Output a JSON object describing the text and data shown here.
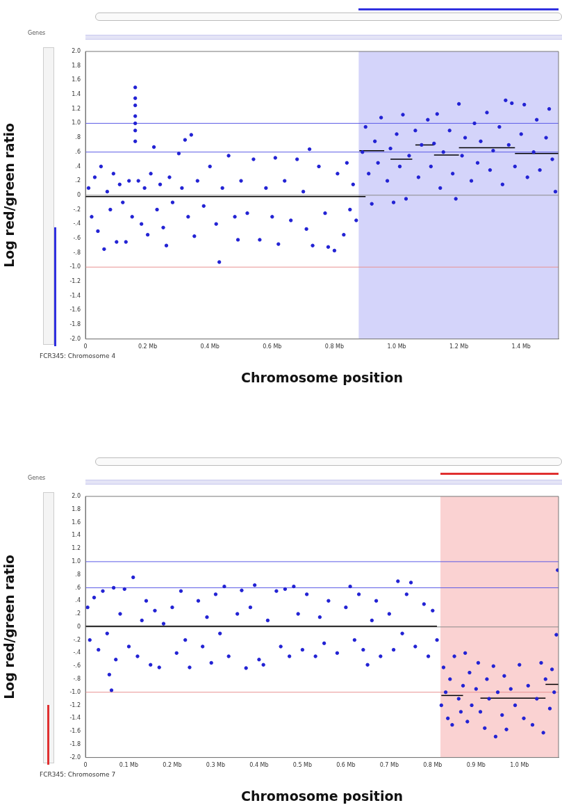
{
  "chart_data": [
    {
      "type": "scatter",
      "xlabel": "Chromosome position",
      "ylabel": "Log red/green ratio",
      "annotations": [
        "FCR345: Chromosome 4",
        "Genes"
      ],
      "grid": false,
      "legend": false,
      "marker": "circle",
      "xlim": [
        0,
        1.52
      ],
      "xticks": [
        0,
        {
          "value": 0.2,
          "label": "0.2 Mb"
        },
        {
          "value": 0.4,
          "label": "0.4 Mb"
        },
        {
          "value": 0.6,
          "label": "0.6 Mb"
        },
        {
          "value": 0.8,
          "label": "0.8 Mb"
        },
        {
          "value": 1.0,
          "label": "1.0 Mb"
        },
        {
          "value": 1.2,
          "label": "1.2 Mb"
        },
        {
          "value": 1.4,
          "label": "1.4 Mb"
        }
      ],
      "ylim": [
        -2,
        2
      ],
      "yticks": [
        {
          "value": 2,
          "label": "2.0"
        },
        1.8,
        1.6,
        1.4,
        1.2,
        {
          "value": 1,
          "label": "1.0"
        },
        {
          "value": 0.8,
          "label": ".8"
        },
        {
          "value": 0.6,
          "label": ".6"
        },
        {
          "value": 0.4,
          "label": ".4"
        },
        {
          "value": 0.2,
          "label": ".2"
        },
        0,
        {
          "value": -0.2,
          "label": "-.2"
        },
        {
          "value": -0.4,
          "label": "-.4"
        },
        {
          "value": -0.6,
          "label": "-.6"
        },
        {
          "value": -0.8,
          "label": "-.8"
        },
        {
          "value": -1,
          "label": "-1.0"
        },
        -1.2,
        -1.4,
        -1.6,
        -1.8,
        {
          "value": -2,
          "label": "-2.0"
        }
      ],
      "bands": [
        {
          "axis": "x",
          "from": 0.878,
          "to": 1.52,
          "color": "#d4d4fa"
        }
      ],
      "ref_lines": [
        {
          "axis": "y",
          "value": 1,
          "color": "#5a5ae6"
        },
        {
          "axis": "y",
          "value": 0.6,
          "color": "#5a5ae6"
        },
        {
          "axis": "y",
          "value": 0,
          "color": "#8a8a8a"
        },
        {
          "axis": "y",
          "value": -1,
          "color": "#e89090"
        }
      ],
      "series": [
        {
          "type": "scatter",
          "color": "#2222d4",
          "x": [
            0.01,
            0.02,
            0.03,
            0.04,
            0.05,
            0.06,
            0.07,
            0.08,
            0.09,
            0.1,
            0.11,
            0.12,
            0.13,
            0.14,
            0.15,
            0.16,
            0.16,
            0.16,
            0.16,
            0.16,
            0.16,
            0.16,
            0.17,
            0.18,
            0.19,
            0.2,
            0.21,
            0.22,
            0.23,
            0.24,
            0.25,
            0.26,
            0.27,
            0.28,
            0.3,
            0.31,
            0.32,
            0.33,
            0.34,
            0.35,
            0.36,
            0.38,
            0.4,
            0.42,
            0.43,
            0.44,
            0.46,
            0.48,
            0.49,
            0.5,
            0.52,
            0.54,
            0.56,
            0.58,
            0.6,
            0.61,
            0.62,
            0.64,
            0.66,
            0.68,
            0.7,
            0.71,
            0.72,
            0.73,
            0.75,
            0.77,
            0.78,
            0.8,
            0.81,
            0.83,
            0.84,
            0.85,
            0.86,
            0.87,
            0.89,
            0.9,
            0.91,
            0.92,
            0.93,
            0.94,
            0.95,
            0.97,
            0.98,
            0.99,
            1.0,
            1.01,
            1.02,
            1.03,
            1.04,
            1.06,
            1.07,
            1.08,
            1.1,
            1.11,
            1.12,
            1.13,
            1.14,
            1.15,
            1.17,
            1.18,
            1.19,
            1.2,
            1.21,
            1.22,
            1.24,
            1.25,
            1.26,
            1.27,
            1.29,
            1.3,
            1.31,
            1.33,
            1.34,
            1.35,
            1.36,
            1.37,
            1.38,
            1.4,
            1.41,
            1.42,
            1.44,
            1.45,
            1.46,
            1.48,
            1.49,
            1.5,
            1.51
          ],
          "values": [
            0.1,
            -0.3,
            0.25,
            -0.5,
            0.4,
            -0.75,
            0.05,
            -0.2,
            0.3,
            -0.65,
            0.15,
            -0.1,
            -0.65,
            0.2,
            -0.3,
            0.75,
            0.9,
            1.0,
            1.1,
            1.25,
            1.35,
            1.5,
            0.2,
            -0.4,
            0.1,
            -0.55,
            0.3,
            0.67,
            -0.2,
            0.15,
            -0.45,
            -0.7,
            0.25,
            -0.1,
            0.58,
            0.1,
            0.77,
            -0.3,
            0.84,
            -0.57,
            0.2,
            -0.15,
            0.4,
            -0.4,
            -0.93,
            0.1,
            0.55,
            -0.3,
            -0.62,
            0.2,
            -0.25,
            0.5,
            -0.62,
            0.1,
            -0.3,
            0.52,
            -0.68,
            0.2,
            -0.35,
            0.5,
            0.05,
            -0.47,
            0.64,
            -0.7,
            0.4,
            -0.25,
            -0.72,
            -0.77,
            0.3,
            -0.55,
            0.45,
            -0.2,
            0.15,
            -0.35,
            0.6,
            0.95,
            0.3,
            -0.12,
            0.75,
            0.45,
            1.08,
            0.2,
            0.65,
            -0.1,
            0.85,
            0.4,
            1.12,
            -0.05,
            0.55,
            0.9,
            0.25,
            0.7,
            1.05,
            0.4,
            0.72,
            1.13,
            0.1,
            0.6,
            0.9,
            0.3,
            -0.05,
            1.27,
            0.55,
            0.8,
            0.2,
            1.0,
            0.45,
            0.75,
            1.15,
            0.35,
            0.62,
            0.95,
            0.15,
            1.32,
            0.7,
            1.28,
            0.4,
            0.85,
            1.26,
            0.25,
            0.6,
            1.05,
            0.35,
            0.8,
            1.2,
            0.5,
            0.05
          ]
        },
        {
          "type": "line",
          "marker": "none",
          "color": "#000000",
          "x": [
            0,
            0.9
          ],
          "values": [
            -0.02,
            -0.02
          ]
        },
        {
          "type": "line",
          "marker": "none",
          "color": "#000000",
          "x": [
            0.88,
            0.96
          ],
          "values": [
            0.62,
            0.62
          ]
        },
        {
          "type": "line",
          "marker": "none",
          "color": "#000000",
          "x": [
            0.98,
            1.05
          ],
          "values": [
            0.5,
            0.5
          ]
        },
        {
          "type": "line",
          "marker": "none",
          "color": "#000000",
          "x": [
            1.06,
            1.12
          ],
          "values": [
            0.7,
            0.7
          ]
        },
        {
          "type": "line",
          "marker": "none",
          "color": "#000000",
          "x": [
            1.12,
            1.2
          ],
          "values": [
            0.56,
            0.56
          ]
        },
        {
          "type": "line",
          "marker": "none",
          "color": "#000000",
          "x": [
            1.2,
            1.38
          ],
          "values": [
            0.66,
            0.66
          ]
        },
        {
          "type": "line",
          "marker": "none",
          "color": "#000000",
          "x": [
            1.38,
            1.52
          ],
          "values": [
            0.58,
            0.58
          ]
        }
      ]
    },
    {
      "type": "scatter",
      "xlabel": "Chromosome position",
      "ylabel": "Log red/green ratio",
      "annotations": [
        "FCR345: Chromosome 7",
        "Genes"
      ],
      "grid": false,
      "legend": false,
      "marker": "circle",
      "xlim": [
        0,
        1.09
      ],
      "xticks": [
        0,
        {
          "value": 0.1,
          "label": "0.1 Mb"
        },
        {
          "value": 0.2,
          "label": "0.2 Mb"
        },
        {
          "value": 0.3,
          "label": "0.3 Mb"
        },
        {
          "value": 0.4,
          "label": "0.4 Mb"
        },
        {
          "value": 0.5,
          "label": "0.5 Mb"
        },
        {
          "value": 0.6,
          "label": "0.6 Mb"
        },
        {
          "value": 0.7,
          "label": "0.7 Mb"
        },
        {
          "value": 0.8,
          "label": "0.8 Mb"
        },
        {
          "value": 0.9,
          "label": "0.9 Mb"
        },
        {
          "value": 1.0,
          "label": "1.0 Mb"
        }
      ],
      "ylim": [
        -2,
        2
      ],
      "yticks": [
        {
          "value": 2,
          "label": "2.0"
        },
        1.8,
        1.6,
        1.4,
        1.2,
        {
          "value": 1,
          "label": "1.0"
        },
        {
          "value": 0.8,
          "label": ".8"
        },
        {
          "value": 0.6,
          "label": ".6"
        },
        {
          "value": 0.4,
          "label": ".4"
        },
        {
          "value": 0.2,
          "label": ".2"
        },
        0,
        {
          "value": -0.2,
          "label": "-.2"
        },
        {
          "value": -0.4,
          "label": "-.4"
        },
        {
          "value": -0.6,
          "label": "-.6"
        },
        {
          "value": -0.8,
          "label": "-.8"
        },
        {
          "value": -1,
          "label": "-1.0"
        },
        -1.2,
        -1.4,
        -1.6,
        -1.8,
        {
          "value": -2,
          "label": "-2.0"
        }
      ],
      "bands": [
        {
          "axis": "x",
          "from": 0.818,
          "to": 1.09,
          "color": "#fad2d2"
        }
      ],
      "ref_lines": [
        {
          "axis": "y",
          "value": 1,
          "color": "#5a5ae6"
        },
        {
          "axis": "y",
          "value": 0.6,
          "color": "#5a5ae6"
        },
        {
          "axis": "y",
          "value": 0,
          "color": "#8a8a8a"
        },
        {
          "axis": "y",
          "value": -1,
          "color": "#e89090"
        }
      ],
      "series": [
        {
          "type": "scatter",
          "color": "#2222d4",
          "x": [
            0.005,
            0.01,
            0.02,
            0.03,
            0.04,
            0.05,
            0.055,
            0.06,
            0.065,
            0.07,
            0.08,
            0.09,
            0.1,
            0.11,
            0.12,
            0.13,
            0.14,
            0.15,
            0.16,
            0.17,
            0.18,
            0.2,
            0.21,
            0.22,
            0.23,
            0.24,
            0.26,
            0.27,
            0.28,
            0.29,
            0.3,
            0.31,
            0.32,
            0.33,
            0.35,
            0.36,
            0.37,
            0.38,
            0.39,
            0.4,
            0.41,
            0.42,
            0.44,
            0.45,
            0.46,
            0.47,
            0.48,
            0.49,
            0.5,
            0.51,
            0.53,
            0.54,
            0.55,
            0.56,
            0.58,
            0.6,
            0.61,
            0.62,
            0.63,
            0.64,
            0.65,
            0.66,
            0.67,
            0.68,
            0.7,
            0.71,
            0.72,
            0.73,
            0.74,
            0.75,
            0.76,
            0.78,
            0.79,
            0.8,
            0.81,
            0.82,
            0.825,
            0.83,
            0.835,
            0.84,
            0.845,
            0.85,
            0.86,
            0.865,
            0.87,
            0.875,
            0.88,
            0.885,
            0.89,
            0.9,
            0.905,
            0.91,
            0.92,
            0.925,
            0.93,
            0.94,
            0.945,
            0.95,
            0.96,
            0.965,
            0.97,
            0.98,
            0.99,
            1.0,
            1.01,
            1.02,
            1.03,
            1.04,
            1.05,
            1.055,
            1.06,
            1.07,
            1.075,
            1.08,
            1.085,
            1.088
          ],
          "values": [
            0.3,
            -0.2,
            0.45,
            -0.35,
            0.55,
            -0.1,
            -0.73,
            -0.97,
            0.6,
            -0.5,
            0.2,
            0.58,
            -0.3,
            0.76,
            -0.45,
            0.1,
            0.4,
            -0.58,
            0.25,
            -0.62,
            0.05,
            0.3,
            -0.4,
            0.55,
            -0.2,
            -0.62,
            0.4,
            -0.3,
            0.15,
            -0.55,
            0.5,
            -0.1,
            0.62,
            -0.45,
            0.2,
            0.56,
            -0.63,
            0.3,
            0.64,
            -0.5,
            -0.58,
            0.1,
            0.55,
            -0.3,
            0.58,
            -0.45,
            0.62,
            0.2,
            -0.35,
            0.5,
            -0.45,
            0.15,
            -0.25,
            0.4,
            -0.4,
            0.3,
            0.62,
            -0.2,
            0.5,
            -0.35,
            -0.58,
            0.1,
            0.4,
            -0.45,
            0.2,
            -0.35,
            0.7,
            -0.1,
            0.5,
            0.68,
            -0.3,
            0.35,
            -0.45,
            0.25,
            -0.2,
            -1.2,
            -0.62,
            -1.0,
            -1.4,
            -0.8,
            -1.5,
            -0.45,
            -1.1,
            -1.3,
            -0.9,
            -0.4,
            -1.45,
            -0.7,
            -1.2,
            -0.95,
            -0.55,
            -1.3,
            -1.55,
            -0.8,
            -1.1,
            -0.6,
            -1.68,
            -1.0,
            -1.35,
            -0.75,
            -1.57,
            -0.95,
            -1.2,
            -0.58,
            -1.4,
            -0.9,
            -1.5,
            -1.1,
            -0.55,
            -1.62,
            -0.8,
            -1.25,
            -0.65,
            -1.0,
            -0.12,
            0.87
          ]
        },
        {
          "type": "line",
          "marker": "none",
          "color": "#000000",
          "x": [
            0,
            0.81
          ],
          "values": [
            0.01,
            0.01
          ]
        },
        {
          "type": "line",
          "marker": "none",
          "color": "#000000",
          "x": [
            0.82,
            0.87
          ],
          "values": [
            -1.05,
            -1.05
          ]
        },
        {
          "type": "line",
          "marker": "none",
          "color": "#000000",
          "x": [
            0.91,
            1.06
          ],
          "values": [
            -1.09,
            -1.09
          ]
        },
        {
          "type": "line",
          "marker": "none",
          "color": "#000000",
          "x": [
            1.06,
            1.09
          ],
          "values": [
            -0.88,
            -0.88
          ]
        }
      ]
    }
  ]
}
